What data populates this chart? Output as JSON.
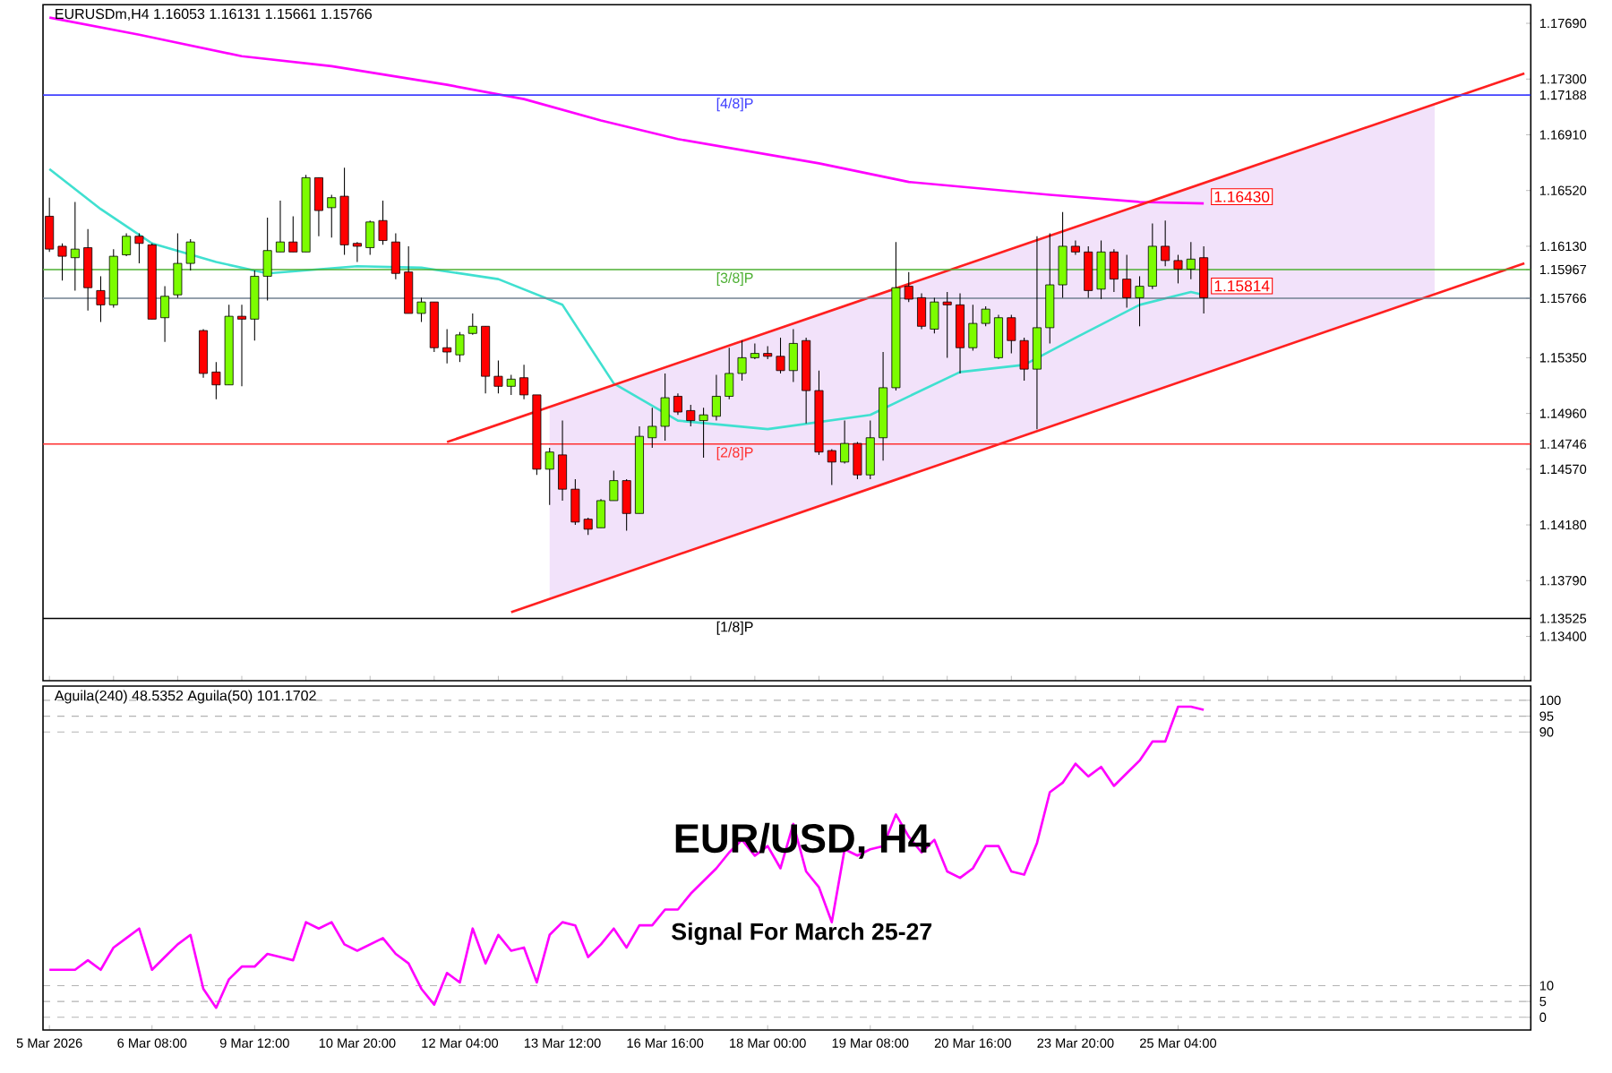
{
  "chart_data": [
    {
      "type": "candlestick",
      "title": "EURUSDm,H4  1.16053 1.16131 1.15661 1.15766",
      "categories": [
        null,
        null,
        null,
        null,
        null,
        null,
        null,
        null,
        null,
        null,
        null,
        null,
        null,
        null,
        null,
        null,
        null,
        null,
        null,
        null,
        null,
        null,
        null,
        null,
        null,
        null,
        null,
        null,
        null,
        null,
        null,
        null,
        null,
        null,
        null,
        null,
        null,
        null,
        null,
        null,
        null,
        null,
        null,
        null,
        null,
        null,
        null,
        null,
        null,
        null,
        null,
        null,
        null,
        null,
        null,
        null,
        null,
        null,
        null,
        null,
        null,
        null,
        null,
        null,
        null,
        null,
        null,
        null,
        null,
        null,
        null,
        null,
        null,
        null,
        null,
        null,
        null,
        null,
        null,
        null,
        null,
        null,
        null,
        null,
        null,
        null,
        null,
        null,
        null,
        null,
        null,
        null,
        null,
        null,
        null,
        null,
        null,
        null,
        null,
        null,
        null,
        null,
        null,
        null,
        null,
        null,
        null,
        null,
        null,
        null,
        null,
        null,
        null,
        null,
        null,
        null
      ],
      "ohlc": [
        [
          1.1634,
          1.1647,
          1.1609,
          1.1611
        ],
        [
          1.1613,
          1.1615,
          1.1589,
          1.1606
        ],
        [
          1.1605,
          1.1644,
          1.1582,
          1.1611
        ],
        [
          1.1612,
          1.1625,
          1.1568,
          1.1584
        ],
        [
          1.1582,
          1.1592,
          1.156,
          1.1572
        ],
        [
          1.1572,
          1.1611,
          1.157,
          1.1606
        ],
        [
          1.1607,
          1.1622,
          1.1606,
          1.162
        ],
        [
          1.162,
          1.1622,
          1.1601,
          1.1615
        ],
        [
          1.1614,
          1.1615,
          1.1562,
          1.1562
        ],
        [
          1.1563,
          1.1585,
          1.1546,
          1.1578
        ],
        [
          1.1579,
          1.1622,
          1.1577,
          1.1601
        ],
        [
          1.1601,
          1.1618,
          1.1596,
          1.1616
        ],
        [
          1.1554,
          1.1555,
          1.1521,
          1.1524
        ],
        [
          1.1525,
          1.1532,
          1.1506,
          1.1516
        ],
        [
          1.1516,
          1.1572,
          1.1516,
          1.1564
        ],
        [
          1.1564,
          1.1572,
          1.1515,
          1.1562
        ],
        [
          1.1562,
          1.1596,
          1.1547,
          1.1592
        ],
        [
          1.1592,
          1.1633,
          1.1575,
          1.161
        ],
        [
          1.1609,
          1.1645,
          1.1609,
          1.1616
        ],
        [
          1.1616,
          1.1634,
          1.1609,
          1.1609
        ],
        [
          1.1609,
          1.1663,
          1.1609,
          1.1661
        ],
        [
          1.1661,
          1.1661,
          1.162,
          1.1638
        ],
        [
          1.164,
          1.1649,
          1.1619,
          1.1647
        ],
        [
          1.1648,
          1.1668,
          1.1607,
          1.1614
        ],
        [
          1.1615,
          1.1616,
          1.1602,
          1.1613
        ],
        [
          1.1612,
          1.1631,
          1.1607,
          1.163
        ],
        [
          1.1631,
          1.1645,
          1.1614,
          1.1617
        ],
        [
          1.1616,
          1.1622,
          1.159,
          1.1594
        ],
        [
          1.1595,
          1.1613,
          1.1566,
          1.1566
        ],
        [
          1.1566,
          1.1577,
          1.156,
          1.1574
        ],
        [
          1.1574,
          1.1574,
          1.1539,
          1.1542
        ],
        [
          1.1542,
          1.1555,
          1.1531,
          1.1539
        ],
        [
          1.1537,
          1.1553,
          1.1532,
          1.1551
        ],
        [
          1.1552,
          1.1566,
          1.1551,
          1.1557
        ],
        [
          1.1557,
          1.1557,
          1.151,
          1.1522
        ],
        [
          1.1522,
          1.1533,
          1.151,
          1.1515
        ],
        [
          1.1515,
          1.1523,
          1.1509,
          1.152
        ],
        [
          1.1521,
          1.153,
          1.1506,
          1.1509
        ],
        [
          1.1509,
          1.1509,
          1.1453,
          1.1457
        ],
        [
          1.1457,
          1.1472,
          1.1432,
          1.1469
        ],
        [
          1.1467,
          1.1491,
          1.1435,
          1.1443
        ],
        [
          1.1443,
          1.145,
          1.1418,
          1.142
        ],
        [
          1.1422,
          1.1423,
          1.1411,
          1.1415
        ],
        [
          1.1416,
          1.1436,
          1.1416,
          1.1435
        ],
        [
          1.1435,
          1.1456,
          1.1435,
          1.1449
        ],
        [
          1.1449,
          1.145,
          1.1414,
          1.1426
        ],
        [
          1.1426,
          1.1487,
          1.1426,
          1.148
        ],
        [
          1.1479,
          1.15,
          1.1472,
          1.1487
        ],
        [
          1.1487,
          1.1524,
          1.1477,
          1.1507
        ],
        [
          1.1508,
          1.151,
          1.1495,
          1.1497
        ],
        [
          1.1498,
          1.1502,
          1.1487,
          1.1491
        ],
        [
          1.1491,
          1.15,
          1.1465,
          1.1495
        ],
        [
          1.1494,
          1.1523,
          1.1491,
          1.1508
        ],
        [
          1.1508,
          1.1542,
          1.1506,
          1.1524
        ],
        [
          1.1524,
          1.1547,
          1.1519,
          1.1535
        ],
        [
          1.1535,
          1.1545,
          1.1534,
          1.1538
        ],
        [
          1.1538,
          1.1543,
          1.1534,
          1.1536
        ],
        [
          1.1536,
          1.1549,
          1.1524,
          1.1526
        ],
        [
          1.1526,
          1.1555,
          1.1518,
          1.1545
        ],
        [
          1.1547,
          1.1549,
          1.1489,
          1.1512
        ],
        [
          1.1512,
          1.1526,
          1.1467,
          1.1469
        ],
        [
          1.147,
          1.1471,
          1.1446,
          1.1462
        ],
        [
          1.1462,
          1.1491,
          1.1461,
          1.1475
        ],
        [
          1.1475,
          1.1476,
          1.145,
          1.1453
        ],
        [
          1.1453,
          1.1491,
          1.145,
          1.1479
        ],
        [
          1.1479,
          1.1539,
          1.1463,
          1.1514
        ],
        [
          1.1514,
          1.1616,
          1.1512,
          1.1584
        ],
        [
          1.1585,
          1.1595,
          1.1574,
          1.1576
        ],
        [
          1.1577,
          1.158,
          1.1555,
          1.1557
        ],
        [
          1.1555,
          1.1577,
          1.1552,
          1.1574
        ],
        [
          1.1574,
          1.1581,
          1.1535,
          1.1572
        ],
        [
          1.1572,
          1.158,
          1.1524,
          1.1542
        ],
        [
          1.1542,
          1.1572,
          1.154,
          1.1559
        ],
        [
          1.1559,
          1.1571,
          1.1557,
          1.1569
        ],
        [
          1.1535,
          1.1565,
          1.1534,
          1.1563
        ],
        [
          1.1563,
          1.1565,
          1.1538,
          1.1547
        ],
        [
          1.1547,
          1.1549,
          1.1519,
          1.1527
        ],
        [
          1.1527,
          1.162,
          1.1485,
          1.1556
        ],
        [
          1.1556,
          1.1622,
          1.1545,
          1.1586
        ],
        [
          1.1586,
          1.1637,
          1.1577,
          1.1613
        ],
        [
          1.1613,
          1.1617,
          1.1607,
          1.1609
        ],
        [
          1.1609,
          1.1613,
          1.1577,
          1.1582
        ],
        [
          1.1583,
          1.1617,
          1.1576,
          1.1609
        ],
        [
          1.1609,
          1.1611,
          1.1581,
          1.159
        ],
        [
          1.159,
          1.1607,
          1.157,
          1.1577
        ],
        [
          1.1577,
          1.1592,
          1.1557,
          1.1585
        ],
        [
          1.1585,
          1.1629,
          1.1583,
          1.1613
        ],
        [
          1.1613,
          1.1631,
          1.1599,
          1.1603
        ],
        [
          1.1603,
          1.1607,
          1.1587,
          1.1597
        ],
        [
          1.1597,
          1.1616,
          1.159,
          1.1604
        ],
        [
          1.1605,
          1.1613,
          1.1566,
          1.1577
        ],
        null,
        null,
        null,
        null,
        null,
        null,
        null,
        null,
        null,
        null,
        null,
        null,
        null,
        null,
        null,
        null,
        null,
        null,
        null,
        null,
        null,
        null,
        null,
        null,
        null
      ],
      "series": [
        {
          "type": "line",
          "color": "#ff00ff",
          "values": [
            1.1773,
            null,
            null,
            null,
            null,
            null,
            null,
            1.1761,
            null,
            null,
            null,
            null,
            null,
            null,
            null,
            1.1746,
            null,
            null,
            null,
            null,
            null,
            null,
            1.1739,
            null,
            null,
            null,
            null,
            null,
            null,
            null,
            null,
            1.1726,
            null,
            null,
            null,
            null,
            null,
            1.1716,
            null,
            null,
            null,
            null,
            null,
            1.1701,
            null,
            null,
            null,
            null,
            null,
            1.1688,
            null,
            null,
            null,
            null,
            null,
            null,
            null,
            null,
            null,
            null,
            1.1671,
            null,
            null,
            null,
            null,
            null,
            null,
            1.1658,
            null,
            null,
            null,
            null,
            null,
            null,
            null,
            null,
            null,
            null,
            1.1649,
            null,
            null,
            null,
            null,
            null,
            null,
            1.1644,
            null,
            null,
            null,
            null,
            1.1643,
            null,
            null,
            null,
            null,
            null,
            null,
            null,
            null,
            null,
            null,
            null,
            null,
            null,
            null,
            null,
            null,
            null,
            null,
            null,
            null,
            null,
            null,
            null,
            null,
            null
          ]
        },
        {
          "type": "line",
          "color": "#40e0d0",
          "values": [
            1.1667,
            null,
            null,
            null,
            1.1639,
            null,
            null,
            null,
            1.1615,
            null,
            null,
            null,
            null,
            1.1602,
            null,
            null,
            null,
            1.1594,
            null,
            null,
            null,
            null,
            null,
            null,
            1.1599,
            null,
            null,
            null,
            null,
            1.1598,
            null,
            null,
            null,
            null,
            null,
            1.159,
            null,
            null,
            null,
            null,
            1.1572,
            null,
            null,
            null,
            1.1517,
            null,
            null,
            null,
            null,
            1.1491,
            null,
            null,
            null,
            null,
            null,
            null,
            1.1485,
            null,
            null,
            null,
            null,
            null,
            null,
            null,
            1.1495,
            null,
            null,
            null,
            null,
            null,
            null,
            1.1525,
            null,
            null,
            null,
            null,
            1.153,
            null,
            null,
            null,
            1.1549,
            null,
            null,
            null,
            null,
            1.1572,
            null,
            null,
            null,
            1.1581,
            1.1579,
            null,
            null,
            null,
            null,
            null,
            null,
            null,
            null,
            null,
            null,
            null,
            null,
            null,
            null,
            null,
            null,
            null,
            null,
            null,
            null,
            null,
            null,
            null,
            null,
            null
          ]
        },
        {
          "type": "line",
          "color": "#ff2020",
          "values": [
            null,
            null,
            null,
            null,
            null,
            null,
            null,
            null,
            null,
            null,
            null,
            null,
            null,
            null,
            null,
            null,
            null,
            null,
            null,
            null,
            null,
            null,
            null,
            null,
            null,
            null,
            null,
            null,
            null,
            null,
            null,
            1.1476,
            null,
            null,
            null,
            null,
            null,
            null,
            null,
            null,
            null,
            null,
            null,
            null,
            null,
            null,
            null,
            null,
            null,
            null,
            null,
            null,
            null,
            null,
            null,
            null,
            null,
            null,
            null,
            null,
            null,
            null,
            null,
            null,
            null,
            null,
            null,
            null,
            null,
            null,
            null,
            null,
            null,
            null,
            null,
            null,
            null,
            null,
            null,
            null,
            null,
            null,
            null,
            null,
            null,
            null,
            null,
            null,
            null,
            null,
            null,
            null,
            null,
            null,
            null,
            null,
            null,
            null,
            null,
            null,
            null,
            null,
            null,
            null,
            null,
            null,
            null,
            null,
            null,
            null,
            null,
            null,
            null,
            null,
            null,
            1.1734
          ],
          "lower": [
            null,
            null,
            null,
            null,
            null,
            null,
            null,
            null,
            null,
            null,
            null,
            null,
            null,
            null,
            null,
            null,
            null,
            null,
            null,
            null,
            null,
            null,
            null,
            null,
            null,
            null,
            null,
            null,
            null,
            null,
            null,
            null,
            null,
            null,
            null,
            null,
            null,
            null,
            null,
            1.1366,
            null,
            null,
            null,
            null,
            null,
            null,
            null,
            null,
            null,
            null,
            null,
            null,
            null,
            null,
            null,
            null,
            null,
            null,
            null,
            null,
            null,
            null,
            null,
            null,
            null,
            null,
            null,
            null,
            null,
            null,
            null,
            null,
            null,
            null,
            null,
            null,
            null,
            null,
            null,
            null,
            null,
            null,
            null,
            null,
            null,
            null,
            null,
            null,
            null,
            null,
            null,
            null,
            null,
            null,
            null,
            null,
            null,
            null,
            null,
            null,
            null,
            null,
            null,
            null,
            null,
            null,
            null,
            null,
            1.1579,
            null,
            null,
            null,
            null,
            null,
            null,
            null
          ],
          "upper": [
            null,
            null,
            null,
            null,
            null,
            null,
            null,
            null,
            null,
            null,
            null,
            null,
            null,
            null,
            null,
            null,
            null,
            null,
            null,
            null,
            null,
            null,
            null,
            null,
            null,
            null,
            null,
            null,
            null,
            null,
            null,
            null,
            null,
            null,
            null,
            null,
            null,
            null,
            null,
            1.1501,
            null,
            null,
            null,
            null,
            null,
            null,
            null,
            null,
            null,
            null,
            null,
            null,
            null,
            null,
            null,
            null,
            null,
            null,
            null,
            null,
            null,
            null,
            null,
            null,
            null,
            null,
            null,
            null,
            null,
            null,
            null,
            null,
            null,
            null,
            null,
            null,
            null,
            null,
            null,
            null,
            null,
            null,
            null,
            null,
            null,
            null,
            null,
            null,
            null,
            null,
            null,
            null,
            null,
            null,
            null,
            null,
            null,
            null,
            null,
            null,
            null,
            null,
            null,
            null,
            null,
            null,
            null,
            null,
            1.1712,
            null,
            null,
            null,
            null,
            null,
            null,
            null
          ]
        },
        {
          "type": "line",
          "color": "#ff2020",
          "values": [
            null,
            null,
            null,
            null,
            null,
            null,
            null,
            null,
            null,
            null,
            null,
            null,
            null,
            null,
            null,
            null,
            null,
            null,
            null,
            null,
            null,
            null,
            null,
            null,
            null,
            null,
            null,
            null,
            null,
            null,
            null,
            null,
            null,
            null,
            null,
            null,
            1.1357,
            null,
            null,
            null,
            null,
            null,
            null,
            null,
            null,
            null,
            null,
            null,
            null,
            null,
            null,
            null,
            null,
            null,
            null,
            null,
            null,
            null,
            null,
            null,
            null,
            null,
            null,
            null,
            null,
            null,
            null,
            null,
            null,
            null,
            null,
            null,
            null,
            null,
            null,
            null,
            null,
            null,
            null,
            null,
            null,
            null,
            null,
            null,
            null,
            null,
            null,
            null,
            null,
            null,
            null,
            null,
            null,
            null,
            null,
            null,
            null,
            null,
            null,
            null,
            null,
            null,
            null,
            null,
            null,
            null,
            null,
            null,
            null,
            null,
            null,
            null,
            null,
            null,
            null,
            1.1601
          ]
        }
      ],
      "ylim": [
        1.1309,
        1.1782
      ],
      "yticks": [
        {
          "value": 1.1769,
          "label": "1.17690"
        },
        {
          "value": 1.173,
          "label": "1.17300"
        },
        {
          "value": 1.17188,
          "label": "1.17188"
        },
        {
          "value": 1.1691,
          "label": "1.16910"
        },
        {
          "value": 1.1652,
          "label": "1.16520"
        },
        {
          "value": 1.1613,
          "label": "1.16130"
        },
        {
          "value": 1.15967,
          "label": "1.15967"
        },
        {
          "value": 1.15766,
          "label": "1.15766"
        },
        {
          "value": 1.1535,
          "label": "1.15350"
        },
        {
          "value": 1.1496,
          "label": "1.14960"
        },
        {
          "value": 1.14746,
          "label": "1.14746"
        },
        {
          "value": 1.1457,
          "label": "1.14570"
        },
        {
          "value": 1.1418,
          "label": "1.14180"
        },
        {
          "value": 1.1379,
          "label": "1.13790"
        },
        {
          "value": 1.13525,
          "label": "1.13525"
        },
        {
          "value": 1.134,
          "label": "1.13400"
        }
      ],
      "ref_lines": [
        {
          "axis": "y",
          "value": 1.17188,
          "label": "[4/8]P",
          "color": "#4040ff"
        },
        {
          "axis": "y",
          "value": 1.15967,
          "label": "[3/8]P",
          "color": "#4caf32"
        },
        {
          "axis": "y",
          "value": 1.15766,
          "color": "#708090"
        },
        {
          "axis": "y",
          "value": 1.14746,
          "label": "[2/8]P",
          "color": "#ff3030"
        },
        {
          "axis": "y",
          "value": 1.13525,
          "label": "[1/8]P",
          "color": "#000000"
        }
      ],
      "annotations": [
        "1.16430",
        "1.15814"
      ]
    },
    {
      "type": "line",
      "title": "Aguila(240) 48.5352  Aguila(50) 101.1702",
      "grid": "y",
      "categories": [
        "5 Mar 2026",
        null,
        null,
        null,
        null,
        null,
        null,
        null,
        "6 Mar 08:00",
        null,
        null,
        null,
        null,
        null,
        null,
        null,
        "9 Mar 12:00",
        null,
        null,
        null,
        null,
        null,
        null,
        null,
        "10 Mar 20:00",
        null,
        null,
        null,
        null,
        null,
        null,
        null,
        "12 Mar 04:00",
        null,
        null,
        null,
        null,
        null,
        null,
        null,
        "13 Mar 12:00",
        null,
        null,
        null,
        null,
        null,
        null,
        null,
        "16 Mar 16:00",
        null,
        null,
        null,
        null,
        null,
        null,
        null,
        "18 Mar 00:00",
        null,
        null,
        null,
        null,
        null,
        null,
        null,
        "19 Mar 08:00",
        null,
        null,
        null,
        null,
        null,
        null,
        null,
        "20 Mar 16:00",
        null,
        null,
        null,
        null,
        null,
        null,
        null,
        "23 Mar 20:00",
        null,
        null,
        null,
        null,
        null,
        null,
        null,
        "25 Mar 04:00",
        null,
        null,
        null,
        null,
        null,
        null,
        null,
        null,
        null,
        null,
        null,
        null,
        null,
        null,
        null,
        null,
        null,
        null,
        null,
        null,
        null,
        null,
        null,
        null,
        null,
        null,
        null
      ],
      "series": [
        {
          "color": "#ff00ff",
          "values": [
            15,
            15,
            15,
            18,
            15,
            22,
            25,
            28,
            15,
            19,
            23,
            26,
            9,
            3,
            12,
            16,
            16,
            20,
            19,
            18,
            30,
            28,
            30,
            23,
            21,
            23,
            25,
            20,
            17,
            9,
            4,
            14,
            11,
            28,
            17,
            26,
            21,
            22,
            11,
            26,
            30,
            29,
            19,
            23,
            28,
            22,
            29,
            29,
            34,
            34,
            39,
            43,
            47,
            52,
            56,
            51,
            54,
            47,
            61,
            46,
            41,
            30,
            53,
            51,
            53,
            54,
            64,
            57,
            52,
            56,
            46,
            44,
            47,
            54,
            54,
            46,
            45,
            55,
            71,
            74,
            80,
            76,
            79,
            73,
            77,
            81,
            87,
            87,
            98,
            98,
            97,
            null,
            null,
            null,
            null,
            null,
            null,
            null,
            null,
            null,
            null,
            null,
            null,
            null,
            null,
            null,
            null,
            null,
            null,
            null,
            null,
            null,
            null,
            null,
            null,
            null
          ]
        }
      ],
      "ylim": [
        -4,
        104.5
      ],
      "yticks": [
        0,
        5,
        10,
        90,
        95,
        100
      ],
      "annotations": [
        "EUR/USD, H4",
        "Signal For March 25-27"
      ]
    }
  ]
}
